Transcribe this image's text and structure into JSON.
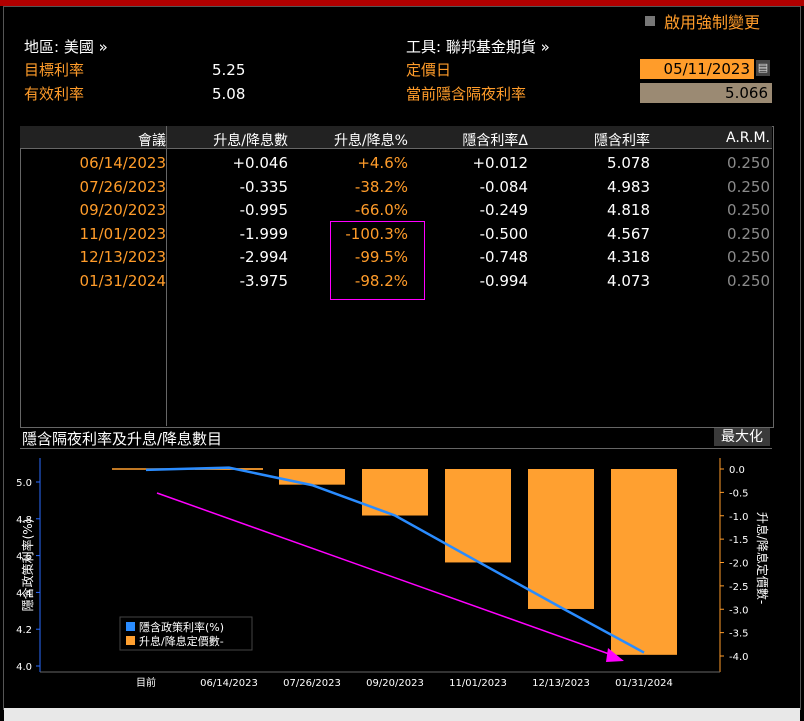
{
  "top": {
    "force_update_label": "啟用強制變更",
    "region_label": "地區: 美國 »",
    "tool_label": "工具: 聯邦基金期貨 »",
    "target_rate_label": "目標利率",
    "target_rate_value": "5.25",
    "effective_rate_label": "有效利率",
    "effective_rate_value": "5.08",
    "pricing_date_label": "定價日",
    "pricing_date_value": "05/11/2023",
    "implied_overnight_label": "當前隱含隔夜利率",
    "implied_overnight_value": "5.066"
  },
  "table": {
    "headers": [
      "會議",
      "升息/降息數",
      "升息/降息%",
      "隱含利率Δ",
      "隱含利率",
      "A.R.M."
    ],
    "rows": [
      [
        "06/14/2023",
        "+0.046",
        "+4.6%",
        "+0.012",
        "5.078",
        "0.250"
      ],
      [
        "07/26/2023",
        "-0.335",
        "-38.2%",
        "-0.084",
        "4.983",
        "0.250"
      ],
      [
        "09/20/2023",
        "-0.995",
        "-66.0%",
        "-0.249",
        "4.818",
        "0.250"
      ],
      [
        "11/01/2023",
        "-1.999",
        "-100.3%",
        "-0.500",
        "4.567",
        "0.250"
      ],
      [
        "12/13/2023",
        "-2.994",
        "-99.5%",
        "-0.748",
        "4.318",
        "0.250"
      ],
      [
        "01/31/2024",
        "-3.975",
        "-98.2%",
        "-0.994",
        "4.073",
        "0.250"
      ]
    ]
  },
  "chart_section": {
    "title": "隱含隔夜利率及升息/降息數目",
    "maximize_label": "最大化"
  },
  "chart_data": {
    "type": "bar",
    "categories": [
      "目前",
      "06/14/2023",
      "07/26/2023",
      "09/20/2023",
      "11/01/2023",
      "12/13/2023",
      "01/31/2024"
    ],
    "series": [
      {
        "name": "隱含政策利率(%)",
        "type": "line",
        "axis": "left",
        "color": "#2a8cff",
        "values": [
          5.066,
          5.078,
          4.983,
          4.818,
          4.567,
          4.318,
          4.073
        ]
      },
      {
        "name": "升息/降息定價數-",
        "type": "bar",
        "axis": "right",
        "color": "#ffa030",
        "values": [
          0.0,
          0.046,
          -0.335,
          -0.995,
          -1.999,
          -2.994,
          -3.975
        ]
      }
    ],
    "ylabel": "隱含政策利率(%)",
    "y2label": "升息/降息定價數-",
    "ylim": [
      3.98,
      5.1
    ],
    "y2lim": [
      -4.1,
      0.2
    ],
    "yticks": [
      "5.0",
      "4.8",
      "4.6",
      "4.4",
      "4.2",
      "4.0"
    ],
    "y2ticks": [
      "0.0",
      "-0.5",
      "-1.0",
      "-1.5",
      "-2.0",
      "-2.5",
      "-3.0",
      "-3.5",
      "-4.0"
    ],
    "legend": "bottom-left",
    "annotation_color": "#ff00ff",
    "colors": {
      "accent": "#ff9c2a",
      "line": "#2a8cff",
      "bar": "#ffa030",
      "highlight": "#ff00ff"
    }
  }
}
